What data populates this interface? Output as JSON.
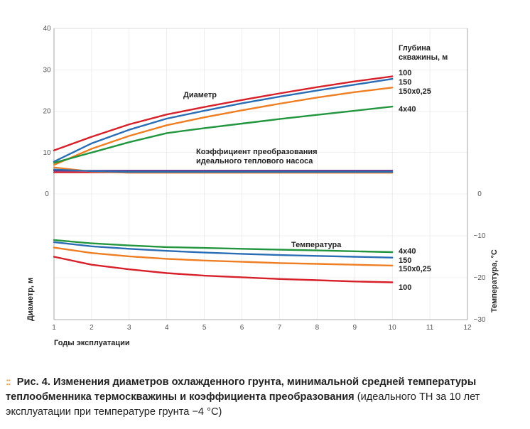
{
  "chart_data": {
    "type": "line",
    "x": [
      1,
      2,
      3,
      4,
      5,
      6,
      7,
      8,
      9,
      10
    ],
    "xlim": [
      1,
      12
    ],
    "x_ticks": [
      "1",
      "2",
      "3",
      "4",
      "5",
      "6",
      "7",
      "8",
      "9",
      "10",
      "11",
      "12"
    ],
    "xlabel": "Годы эксплуатации",
    "left_axis": {
      "label": "Диаметр, м",
      "ylim": [
        0,
        40
      ],
      "ticks": [
        "0",
        "10",
        "20",
        "30",
        "40"
      ]
    },
    "right_axis": {
      "label": "Температура, °С",
      "ylim": [
        -30,
        0
      ],
      "ticks": [
        "0",
        "−10",
        "−20",
        "−30"
      ]
    },
    "legend_title": "Глубина скважины, м",
    "group_labels": {
      "diameter": "Диаметр",
      "cop": "Коэффициент преобразования идеального теплового насоса",
      "temperature": "Температура"
    },
    "diameter_series": [
      {
        "name": "100",
        "color": "#d7202a",
        "values": [
          10.5,
          13.8,
          16.8,
          19.2,
          21.0,
          22.7,
          24.3,
          25.8,
          27.2,
          28.4
        ]
      },
      {
        "name": "150",
        "color": "#2a6db5",
        "values": [
          7.8,
          12.2,
          15.5,
          18.2,
          20.1,
          21.9,
          23.5,
          25.0,
          26.4,
          27.8
        ]
      },
      {
        "name": "150x0,25",
        "color": "#ef7d22",
        "values": [
          7.0,
          10.9,
          14.0,
          16.6,
          18.5,
          20.2,
          21.8,
          23.3,
          24.6,
          25.7
        ]
      },
      {
        "name": "4x40",
        "color": "#22953f",
        "values": [
          7.5,
          10.0,
          12.5,
          14.7,
          15.9,
          17.0,
          18.1,
          19.1,
          20.1,
          21.1
        ]
      }
    ],
    "cop_series": [
      {
        "color": "#5a2d83",
        "values": [
          5.6,
          5.6,
          5.6,
          5.6,
          5.6,
          5.6,
          5.6,
          5.6,
          5.6,
          5.6
        ]
      },
      {
        "color": "#d7202a",
        "values": [
          5.2,
          5.2,
          5.2,
          5.2,
          5.2,
          5.2,
          5.2,
          5.2,
          5.2,
          5.2
        ]
      },
      {
        "color": "#ef7d22",
        "values": [
          6.4,
          5.4,
          5.1,
          5.1,
          5.1,
          5.1,
          5.1,
          5.1,
          5.1,
          5.1
        ]
      },
      {
        "color": "#2a6db5",
        "values": [
          5.9,
          5.5,
          5.3,
          5.3,
          5.3,
          5.3,
          5.3,
          5.3,
          5.3,
          5.3
        ]
      }
    ],
    "temperature_series": [
      {
        "name": "4x40",
        "color": "#22953f",
        "values": [
          -11.0,
          -11.8,
          -12.3,
          -12.7,
          -12.9,
          -13.1,
          -13.3,
          -13.5,
          -13.7,
          -13.9
        ]
      },
      {
        "name": "150",
        "color": "#2a6db5",
        "values": [
          -11.5,
          -12.5,
          -13.1,
          -13.6,
          -14.0,
          -14.3,
          -14.6,
          -14.8,
          -15.0,
          -15.2
        ]
      },
      {
        "name": "150x0,25",
        "color": "#ef7d22",
        "values": [
          -12.8,
          -14.1,
          -14.9,
          -15.5,
          -15.9,
          -16.2,
          -16.5,
          -16.7,
          -16.9,
          -17.1
        ]
      },
      {
        "name": "100",
        "color": "#d7202a",
        "values": [
          -15.0,
          -16.9,
          -18.0,
          -18.9,
          -19.5,
          -19.9,
          -20.3,
          -20.6,
          -20.9,
          -21.1
        ]
      }
    ]
  },
  "caption": {
    "bullet": "::",
    "fig_no": "Рис. 4.",
    "bold_text": "Изменения диаметров охлажденного грунта, минимальной средней температуры теплообменника термоскважины и коэффициента преобразования",
    "regular_text": "(идеального ТН за 10 лет эксплуатации при температуре грунта −4 °С)"
  }
}
